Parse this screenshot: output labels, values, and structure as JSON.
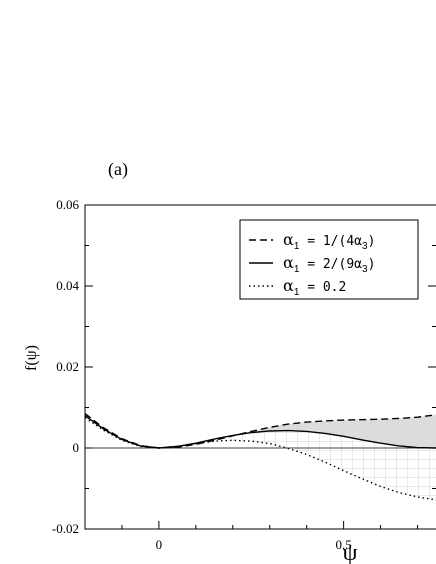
{
  "chart_data": {
    "type": "line",
    "panel_label": "(a)",
    "xlabel": "ψ",
    "ylabel": "f(ψ)",
    "xlim": [
      -0.2,
      0.75
    ],
    "ylim": [
      -0.02,
      0.06
    ],
    "x_ticks": [
      {
        "value": 0,
        "label": "0"
      },
      {
        "value": 0.5,
        "label": "0.5"
      }
    ],
    "y_ticks": [
      {
        "value": -0.02,
        "label": "-0.02"
      },
      {
        "value": 0,
        "label": "0"
      },
      {
        "value": 0.02,
        "label": "0.02"
      },
      {
        "value": 0.04,
        "label": "0.04"
      },
      {
        "value": 0.06,
        "label": "0.06"
      }
    ],
    "legend": {
      "placement": "top-right",
      "entries": [
        {
          "style": "dashed",
          "label_parts": [
            "α",
            "1",
            " = 1/(4α",
            "3",
            ")"
          ]
        },
        {
          "style": "solid",
          "label_parts": [
            "α",
            "1",
            " = 2/(9α",
            "3",
            ")"
          ]
        },
        {
          "style": "dotted",
          "label_parts": [
            "α",
            "1",
            " = 0.2",
            "",
            ""
          ]
        }
      ]
    },
    "series": [
      {
        "style": "dashed",
        "x": [
          -0.2,
          -0.15,
          -0.1,
          -0.05,
          0,
          0.05,
          0.1,
          0.15,
          0.2,
          0.25,
          0.3,
          0.35,
          0.4,
          0.45,
          0.5,
          0.55,
          0.6,
          0.65,
          0.7,
          0.75
        ],
        "y": [
          0.0085,
          0.005,
          0.0023,
          0.0006,
          0,
          0.0002,
          0.0009,
          0.0019,
          0.003,
          0.0041,
          0.0051,
          0.0059,
          0.0064,
          0.0067,
          0.0069,
          0.007,
          0.0071,
          0.0073,
          0.0076,
          0.0082
        ]
      },
      {
        "style": "solid",
        "x": [
          -0.2,
          -0.15,
          -0.1,
          -0.05,
          0,
          0.05,
          0.1,
          0.15,
          0.2,
          0.25,
          0.3,
          0.35,
          0.4,
          0.45,
          0.5,
          0.55,
          0.6,
          0.65,
          0.7,
          0.75
        ],
        "y": [
          0.008,
          0.0047,
          0.0021,
          0.0005,
          0,
          0.0004,
          0.0012,
          0.0022,
          0.0031,
          0.0038,
          0.0042,
          0.0043,
          0.0041,
          0.0036,
          0.0029,
          0.002,
          0.0012,
          0.0005,
          0.0001,
          0.0
        ]
      },
      {
        "style": "dotted",
        "x": [
          -0.2,
          -0.15,
          -0.1,
          -0.05,
          0,
          0.05,
          0.1,
          0.15,
          0.2,
          0.25,
          0.3,
          0.35,
          0.4,
          0.45,
          0.5,
          0.55,
          0.6,
          0.65,
          0.7,
          0.75
        ],
        "y": [
          0.0075,
          0.0044,
          0.0019,
          0.0004,
          0,
          0.0004,
          0.0011,
          0.0017,
          0.0019,
          0.0017,
          0.0011,
          -0.0001,
          -0.0016,
          -0.0035,
          -0.0056,
          -0.0076,
          -0.0095,
          -0.011,
          -0.0121,
          -0.0128
        ]
      }
    ],
    "shading": [
      {
        "between": [
          "dashed",
          "solid"
        ],
        "fill": "#dcdcdc",
        "pattern": "solid-gray"
      },
      {
        "between": [
          "solid",
          "dotted"
        ],
        "fill": "#ffffff",
        "pattern": "grid-hatch"
      }
    ],
    "colors": {
      "line": "#000000",
      "shade": "#dcdcdc",
      "hatch": "#c8c8c8"
    }
  }
}
